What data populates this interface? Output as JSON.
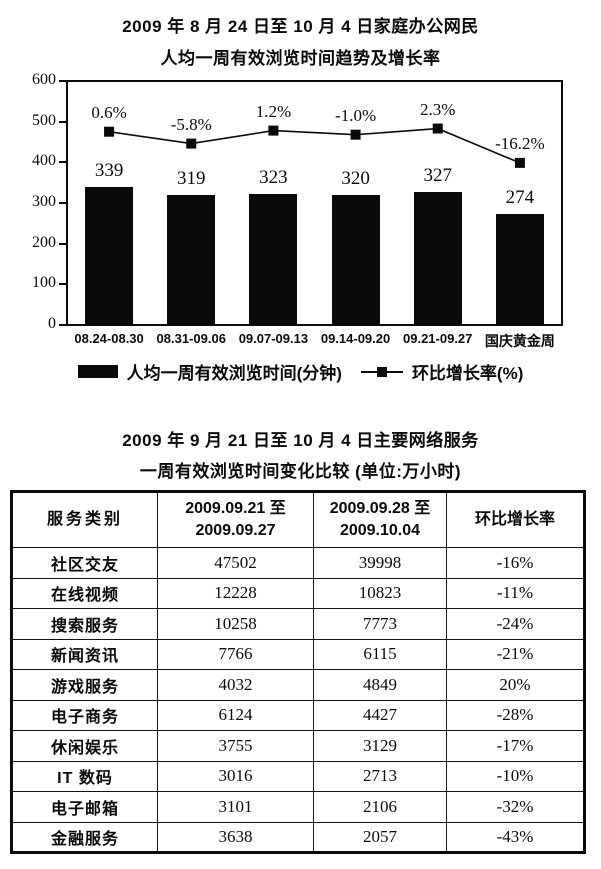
{
  "chart": {
    "title_line1": "2009 年 8 月 24 日至 10 月 4 日家庭办公网民",
    "title_line2": "人均一周有效浏览时间趋势及增长率",
    "legend": {
      "bar_label": "人均一周有效浏览时间(分钟)",
      "line_label": "环比增长率(%)"
    }
  },
  "chart_data": {
    "type": "bar+line combo",
    "categories": [
      "08.24-08.30",
      "08.31-09.06",
      "09.07-09.13",
      "09.14-09.20",
      "09.21-09.27",
      "国庆黄金周"
    ],
    "series": [
      {
        "name": "人均一周有效浏览时间(分钟)",
        "type": "bar",
        "values": [
          339,
          319,
          323,
          320,
          327,
          274
        ]
      },
      {
        "name": "环比增长率(%)",
        "type": "line",
        "values": [
          0.6,
          -5.8,
          1.2,
          -1.0,
          2.3,
          -16.2
        ],
        "labels": [
          "0.6%",
          "-5.8%",
          "1.2%",
          "-1.0%",
          "2.3%",
          "-16.2%"
        ]
      }
    ],
    "ylabel": "",
    "xlabel": "",
    "ylim": [
      0,
      600
    ],
    "yticks": [
      0,
      100,
      200,
      300,
      400,
      500,
      600
    ],
    "grid": false,
    "legend_position": "bottom",
    "line_axis_mapping": {
      "offset": 474,
      "scale": 4.6
    }
  },
  "table": {
    "title_line1": "2009 年 9 月 21 日至 10 月 4 日主要网络服务",
    "title_line2": "一周有效浏览时间变化比较 (单位:万小时)",
    "headers": [
      "服务类别",
      "2009.09.21 至\n2009.09.27",
      "2009.09.28 至\n2009.10.04",
      "环比增长率"
    ],
    "rows": [
      [
        "社区交友",
        "47502",
        "39998",
        "-16%"
      ],
      [
        "在线视频",
        "12228",
        "10823",
        "-11%"
      ],
      [
        "搜索服务",
        "10258",
        "7773",
        "-24%"
      ],
      [
        "新闻资讯",
        "7766",
        "6115",
        "-21%"
      ],
      [
        "游戏服务",
        "4032",
        "4849",
        "20%"
      ],
      [
        "电子商务",
        "6124",
        "4427",
        "-28%"
      ],
      [
        "休闲娱乐",
        "3755",
        "3129",
        "-17%"
      ],
      [
        "IT 数码",
        "3016",
        "2713",
        "-10%"
      ],
      [
        "电子邮箱",
        "3101",
        "2106",
        "-32%"
      ],
      [
        "金融服务",
        "3638",
        "2057",
        "-43%"
      ]
    ]
  }
}
